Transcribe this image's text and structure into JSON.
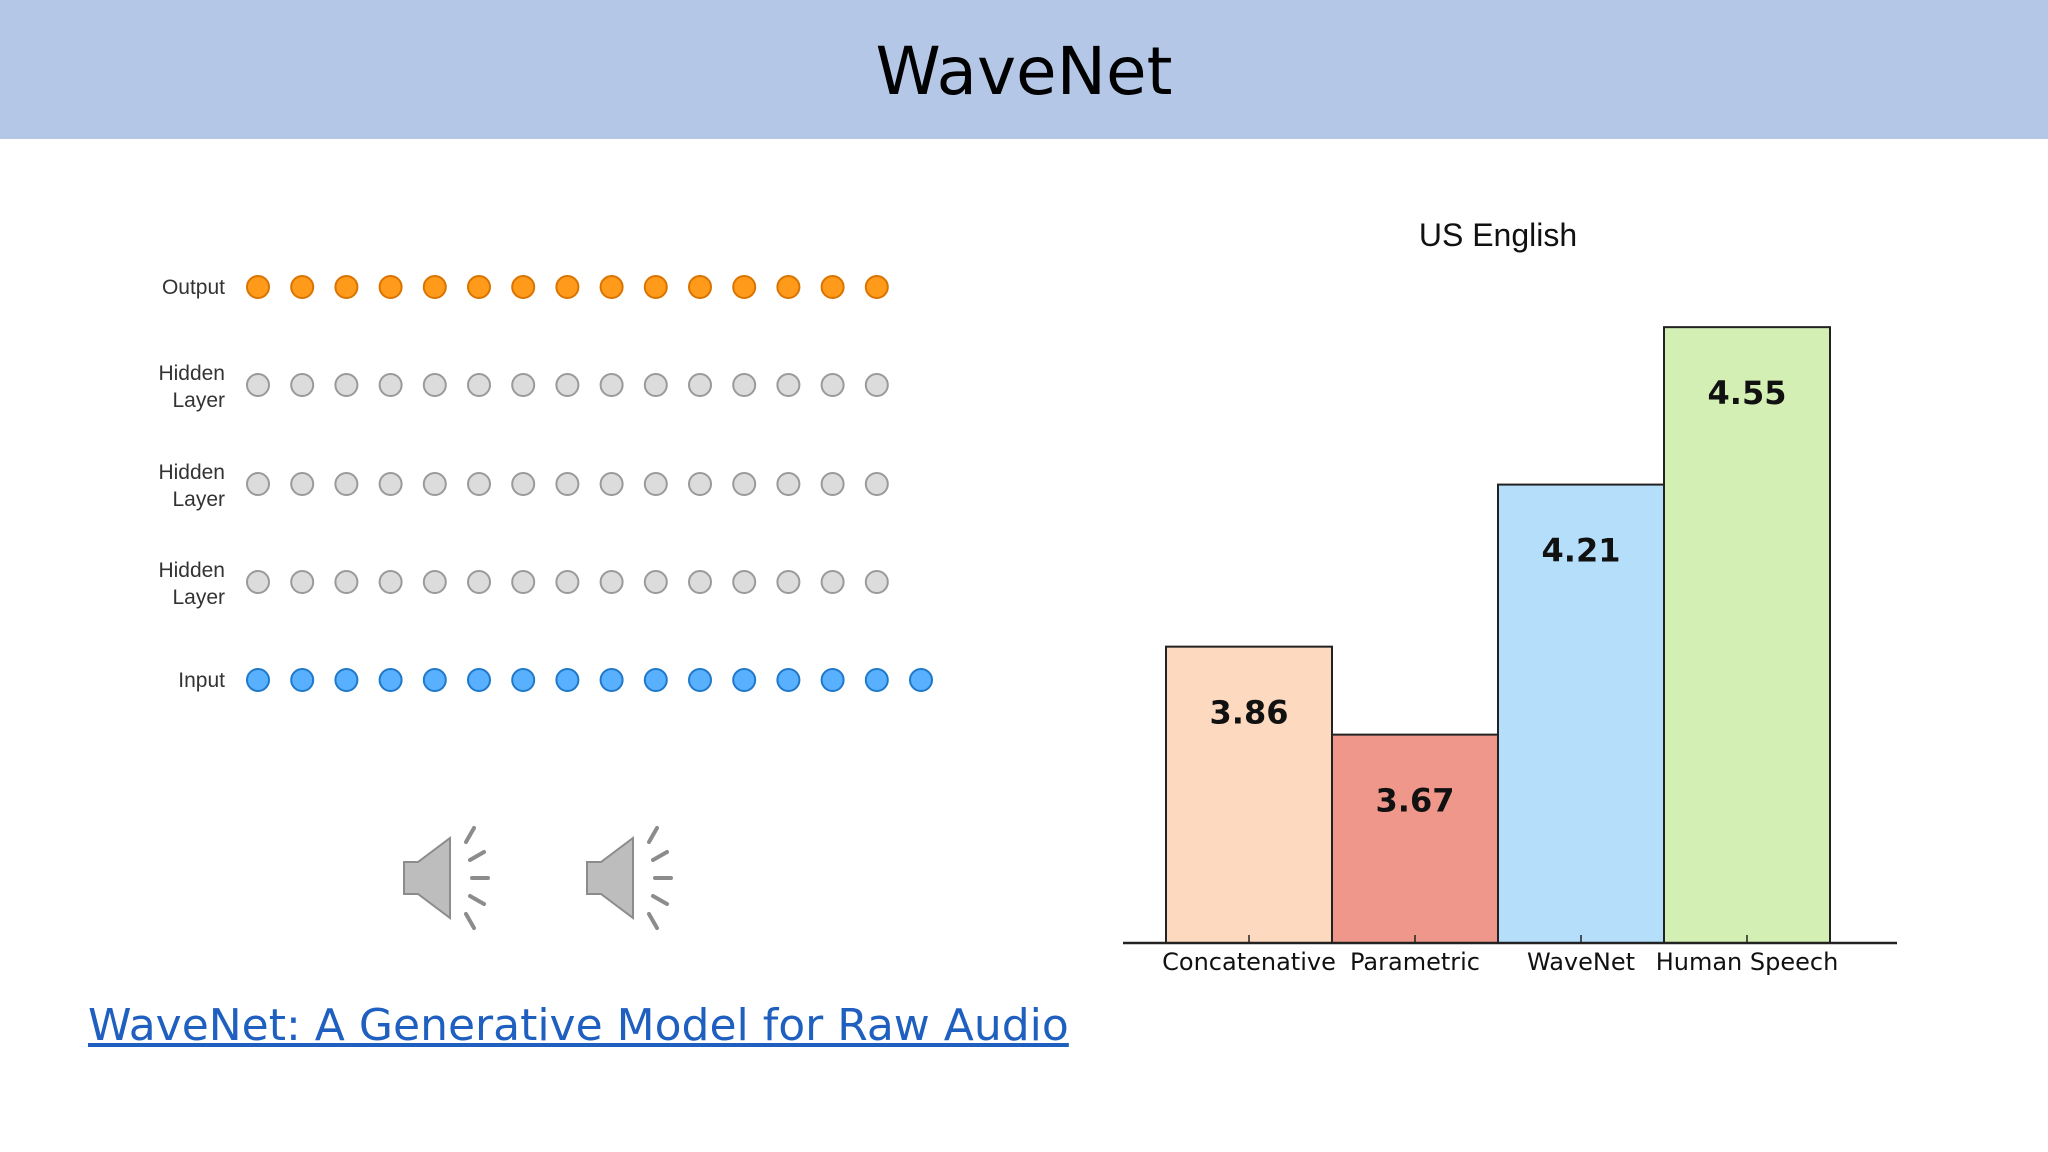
{
  "slide": {
    "title": "WaveNet"
  },
  "network": {
    "layers": [
      {
        "label_lines": [
          "Output"
        ],
        "nodes": 15,
        "kind": "output"
      },
      {
        "label_lines": [
          "Hidden",
          "Layer"
        ],
        "nodes": 15,
        "kind": "hidden"
      },
      {
        "label_lines": [
          "Hidden",
          "Layer"
        ],
        "nodes": 15,
        "kind": "hidden"
      },
      {
        "label_lines": [
          "Hidden",
          "Layer"
        ],
        "nodes": 15,
        "kind": "hidden"
      },
      {
        "label_lines": [
          "Input"
        ],
        "nodes": 16,
        "kind": "input"
      }
    ],
    "colors": {
      "output": {
        "fill": "#ff9a1a",
        "stroke": "#d97400"
      },
      "hidden": {
        "fill": "#dcdcdc",
        "stroke": "#9a9a9a"
      },
      "input": {
        "fill": "#58b0ff",
        "stroke": "#1f78c8"
      }
    }
  },
  "media": {
    "speakers": [
      {
        "icon": "speaker-icon"
      },
      {
        "icon": "speaker-icon"
      }
    ]
  },
  "link": {
    "text": "WaveNet: A Generative Model for Raw Audio"
  },
  "chart_data": {
    "type": "bar",
    "title": "US English",
    "categories": [
      "Concatenative",
      "Parametric",
      "WaveNet",
      "Human Speech"
    ],
    "values": [
      3.86,
      3.67,
      4.21,
      4.55
    ],
    "value_labels": [
      "3.86",
      "3.67",
      "4.21",
      "4.55"
    ],
    "ylim": [
      3.22,
      4.6
    ],
    "colors": [
      "#fdd9bf",
      "#ee978a",
      "#b5defa",
      "#d3efb3"
    ],
    "xlabel": "",
    "ylabel": "",
    "grid": false,
    "yaxis_visible": false
  }
}
